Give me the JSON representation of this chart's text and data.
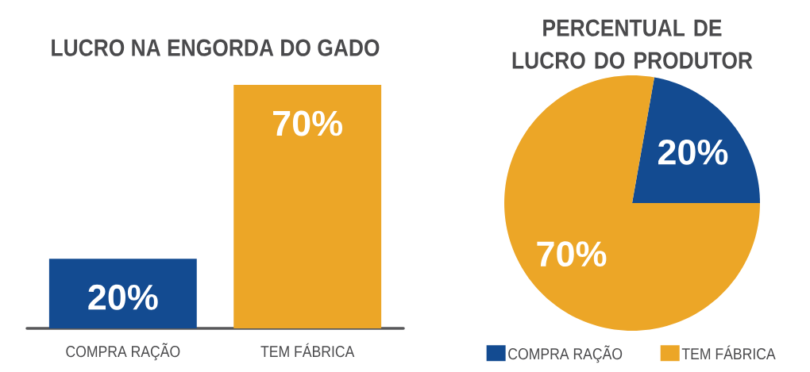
{
  "chart_data": [
    {
      "type": "bar",
      "title": "LUCRO NA ENGORDA DO GADO",
      "categories": [
        "COMPRA RAÇÃO",
        "TEM FÁBRICA"
      ],
      "values": [
        20,
        70
      ],
      "colors": [
        "#134b91",
        "#eca627"
      ],
      "value_labels": [
        "20%",
        "70%"
      ]
    },
    {
      "type": "pie",
      "title": "PERCENTUAL DE LUCRO DO PRODUTOR",
      "categories": [
        "COMPRA RAÇÃO",
        "TEM FÁBRICA"
      ],
      "values": [
        20,
        70
      ],
      "colors": [
        "#134b91",
        "#eca627"
      ],
      "value_labels": [
        "20%",
        "70%"
      ],
      "legend": "bottom"
    }
  ]
}
